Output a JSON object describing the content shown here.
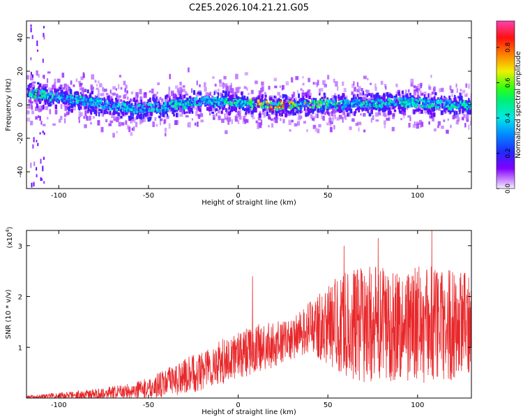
{
  "title": "C2E5.2026.104.21.21.G05",
  "chart_data": [
    {
      "type": "heatmap",
      "name": "spectrogram",
      "xlabel": "Height of straight line (km)",
      "ylabel": "Frequency (Hz)",
      "xlim": [
        -118,
        130
      ],
      "ylim": [
        -50,
        50
      ],
      "xticks": [
        -100,
        -50,
        0,
        50,
        100
      ],
      "yticks": [
        -40,
        -20,
        0,
        20,
        40
      ],
      "ytick_labels": [
        "-40",
        "-20",
        "0",
        "20",
        "40"
      ],
      "colorbar": {
        "label": "Normalized spectral amplitude",
        "range": [
          0,
          0.95
        ],
        "ticks": [
          0.0,
          0.2,
          0.4,
          0.6,
          0.8
        ],
        "tick_labels": [
          "0.0",
          "0.2",
          "0.4",
          "0.6",
          "0.8"
        ]
      },
      "ridge": {
        "x": [
          -118,
          -100,
          -80,
          -60,
          -40,
          -20,
          0,
          20,
          40,
          60,
          80,
          100,
          130
        ],
        "center_hz": [
          8,
          5,
          2,
          -2,
          0,
          3,
          2,
          0,
          1,
          1,
          2,
          2,
          0
        ],
        "peak_amplitude": [
          0.6,
          0.5,
          0.45,
          0.45,
          0.5,
          0.5,
          0.55,
          0.95,
          0.7,
          0.5,
          0.5,
          0.5,
          0.5
        ]
      }
    },
    {
      "type": "line",
      "name": "snr",
      "xlabel": "Height of straight line (km)",
      "ylabel": "SNR (10 * v/v)",
      "scale_label": "(x10^4)",
      "scale_base": "(x10",
      "scale_exp": "4",
      "scale_close": ")",
      "xlim": [
        -118,
        130
      ],
      "ylim": [
        0,
        3.3
      ],
      "xticks": [
        -100,
        -50,
        0,
        50,
        100
      ],
      "yticks": [
        1,
        2,
        3
      ],
      "color": "#e8282b",
      "envelope": {
        "x": [
          -118,
          -100,
          -80,
          -60,
          -50,
          -40,
          -30,
          -20,
          -10,
          0,
          10,
          20,
          30,
          40,
          50,
          60,
          70,
          80,
          90,
          100,
          110,
          120,
          130
        ],
        "mean": [
          0.02,
          0.05,
          0.08,
          0.14,
          0.2,
          0.3,
          0.42,
          0.55,
          0.7,
          0.85,
          0.95,
          1.05,
          1.15,
          1.4,
          1.45,
          1.45,
          1.45,
          1.45,
          1.45,
          1.45,
          1.45,
          1.45,
          1.45
        ],
        "amplitude": [
          0.03,
          0.06,
          0.1,
          0.15,
          0.2,
          0.28,
          0.35,
          0.4,
          0.45,
          0.45,
          0.5,
          0.45,
          0.4,
          0.5,
          0.8,
          1.05,
          1.15,
          1.15,
          1.1,
          1.15,
          1.2,
          1.1,
          1.0
        ]
      },
      "peaks": [
        {
          "x": 8,
          "y": 2.4
        },
        {
          "x": 59,
          "y": 3.0
        },
        {
          "x": 78,
          "y": 3.15
        },
        {
          "x": 108,
          "y": 3.3
        }
      ]
    }
  ]
}
